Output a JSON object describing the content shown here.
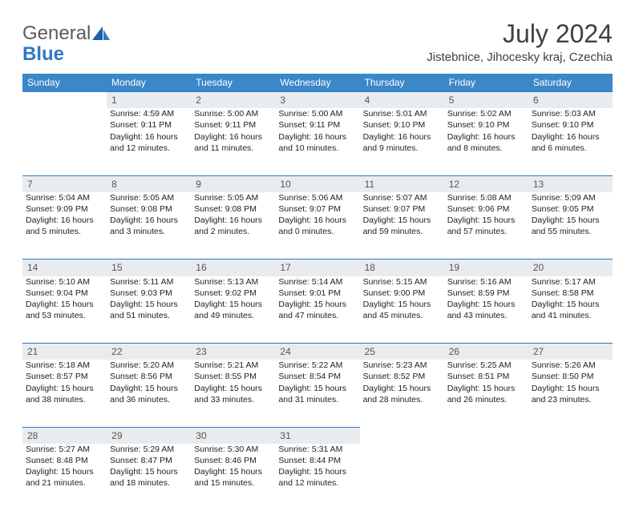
{
  "brand": {
    "word1": "General",
    "word2": "Blue"
  },
  "title": "July 2024",
  "location": "Jistebnice, Jihocesky kraj, Czechia",
  "colors": {
    "header_bg": "#3b87c8",
    "header_text": "#ffffff",
    "daynum_bg": "#e9ecee",
    "row_border": "#2f78c4",
    "logo_gray": "#5a5a5a",
    "logo_blue": "#2f78c4",
    "body_text": "#2b2b2b",
    "bg": "#ffffff"
  },
  "dayHeaders": [
    "Sunday",
    "Monday",
    "Tuesday",
    "Wednesday",
    "Thursday",
    "Friday",
    "Saturday"
  ],
  "weeks": [
    [
      null,
      {
        "n": "1",
        "sunrise": "4:59 AM",
        "sunset": "9:11 PM",
        "daylight": "16 hours and 12 minutes."
      },
      {
        "n": "2",
        "sunrise": "5:00 AM",
        "sunset": "9:11 PM",
        "daylight": "16 hours and 11 minutes."
      },
      {
        "n": "3",
        "sunrise": "5:00 AM",
        "sunset": "9:11 PM",
        "daylight": "16 hours and 10 minutes."
      },
      {
        "n": "4",
        "sunrise": "5:01 AM",
        "sunset": "9:10 PM",
        "daylight": "16 hours and 9 minutes."
      },
      {
        "n": "5",
        "sunrise": "5:02 AM",
        "sunset": "9:10 PM",
        "daylight": "16 hours and 8 minutes."
      },
      {
        "n": "6",
        "sunrise": "5:03 AM",
        "sunset": "9:10 PM",
        "daylight": "16 hours and 6 minutes."
      }
    ],
    [
      {
        "n": "7",
        "sunrise": "5:04 AM",
        "sunset": "9:09 PM",
        "daylight": "16 hours and 5 minutes."
      },
      {
        "n": "8",
        "sunrise": "5:05 AM",
        "sunset": "9:08 PM",
        "daylight": "16 hours and 3 minutes."
      },
      {
        "n": "9",
        "sunrise": "5:05 AM",
        "sunset": "9:08 PM",
        "daylight": "16 hours and 2 minutes."
      },
      {
        "n": "10",
        "sunrise": "5:06 AM",
        "sunset": "9:07 PM",
        "daylight": "16 hours and 0 minutes."
      },
      {
        "n": "11",
        "sunrise": "5:07 AM",
        "sunset": "9:07 PM",
        "daylight": "15 hours and 59 minutes."
      },
      {
        "n": "12",
        "sunrise": "5:08 AM",
        "sunset": "9:06 PM",
        "daylight": "15 hours and 57 minutes."
      },
      {
        "n": "13",
        "sunrise": "5:09 AM",
        "sunset": "9:05 PM",
        "daylight": "15 hours and 55 minutes."
      }
    ],
    [
      {
        "n": "14",
        "sunrise": "5:10 AM",
        "sunset": "9:04 PM",
        "daylight": "15 hours and 53 minutes."
      },
      {
        "n": "15",
        "sunrise": "5:11 AM",
        "sunset": "9:03 PM",
        "daylight": "15 hours and 51 minutes."
      },
      {
        "n": "16",
        "sunrise": "5:13 AM",
        "sunset": "9:02 PM",
        "daylight": "15 hours and 49 minutes."
      },
      {
        "n": "17",
        "sunrise": "5:14 AM",
        "sunset": "9:01 PM",
        "daylight": "15 hours and 47 minutes."
      },
      {
        "n": "18",
        "sunrise": "5:15 AM",
        "sunset": "9:00 PM",
        "daylight": "15 hours and 45 minutes."
      },
      {
        "n": "19",
        "sunrise": "5:16 AM",
        "sunset": "8:59 PM",
        "daylight": "15 hours and 43 minutes."
      },
      {
        "n": "20",
        "sunrise": "5:17 AM",
        "sunset": "8:58 PM",
        "daylight": "15 hours and 41 minutes."
      }
    ],
    [
      {
        "n": "21",
        "sunrise": "5:18 AM",
        "sunset": "8:57 PM",
        "daylight": "15 hours and 38 minutes."
      },
      {
        "n": "22",
        "sunrise": "5:20 AM",
        "sunset": "8:56 PM",
        "daylight": "15 hours and 36 minutes."
      },
      {
        "n": "23",
        "sunrise": "5:21 AM",
        "sunset": "8:55 PM",
        "daylight": "15 hours and 33 minutes."
      },
      {
        "n": "24",
        "sunrise": "5:22 AM",
        "sunset": "8:54 PM",
        "daylight": "15 hours and 31 minutes."
      },
      {
        "n": "25",
        "sunrise": "5:23 AM",
        "sunset": "8:52 PM",
        "daylight": "15 hours and 28 minutes."
      },
      {
        "n": "26",
        "sunrise": "5:25 AM",
        "sunset": "8:51 PM",
        "daylight": "15 hours and 26 minutes."
      },
      {
        "n": "27",
        "sunrise": "5:26 AM",
        "sunset": "8:50 PM",
        "daylight": "15 hours and 23 minutes."
      }
    ],
    [
      {
        "n": "28",
        "sunrise": "5:27 AM",
        "sunset": "8:48 PM",
        "daylight": "15 hours and 21 minutes."
      },
      {
        "n": "29",
        "sunrise": "5:29 AM",
        "sunset": "8:47 PM",
        "daylight": "15 hours and 18 minutes."
      },
      {
        "n": "30",
        "sunrise": "5:30 AM",
        "sunset": "8:46 PM",
        "daylight": "15 hours and 15 minutes."
      },
      {
        "n": "31",
        "sunrise": "5:31 AM",
        "sunset": "8:44 PM",
        "daylight": "15 hours and 12 minutes."
      },
      null,
      null,
      null
    ]
  ],
  "labels": {
    "sunrise": "Sunrise: ",
    "sunset": "Sunset: ",
    "daylight": "Daylight: "
  }
}
